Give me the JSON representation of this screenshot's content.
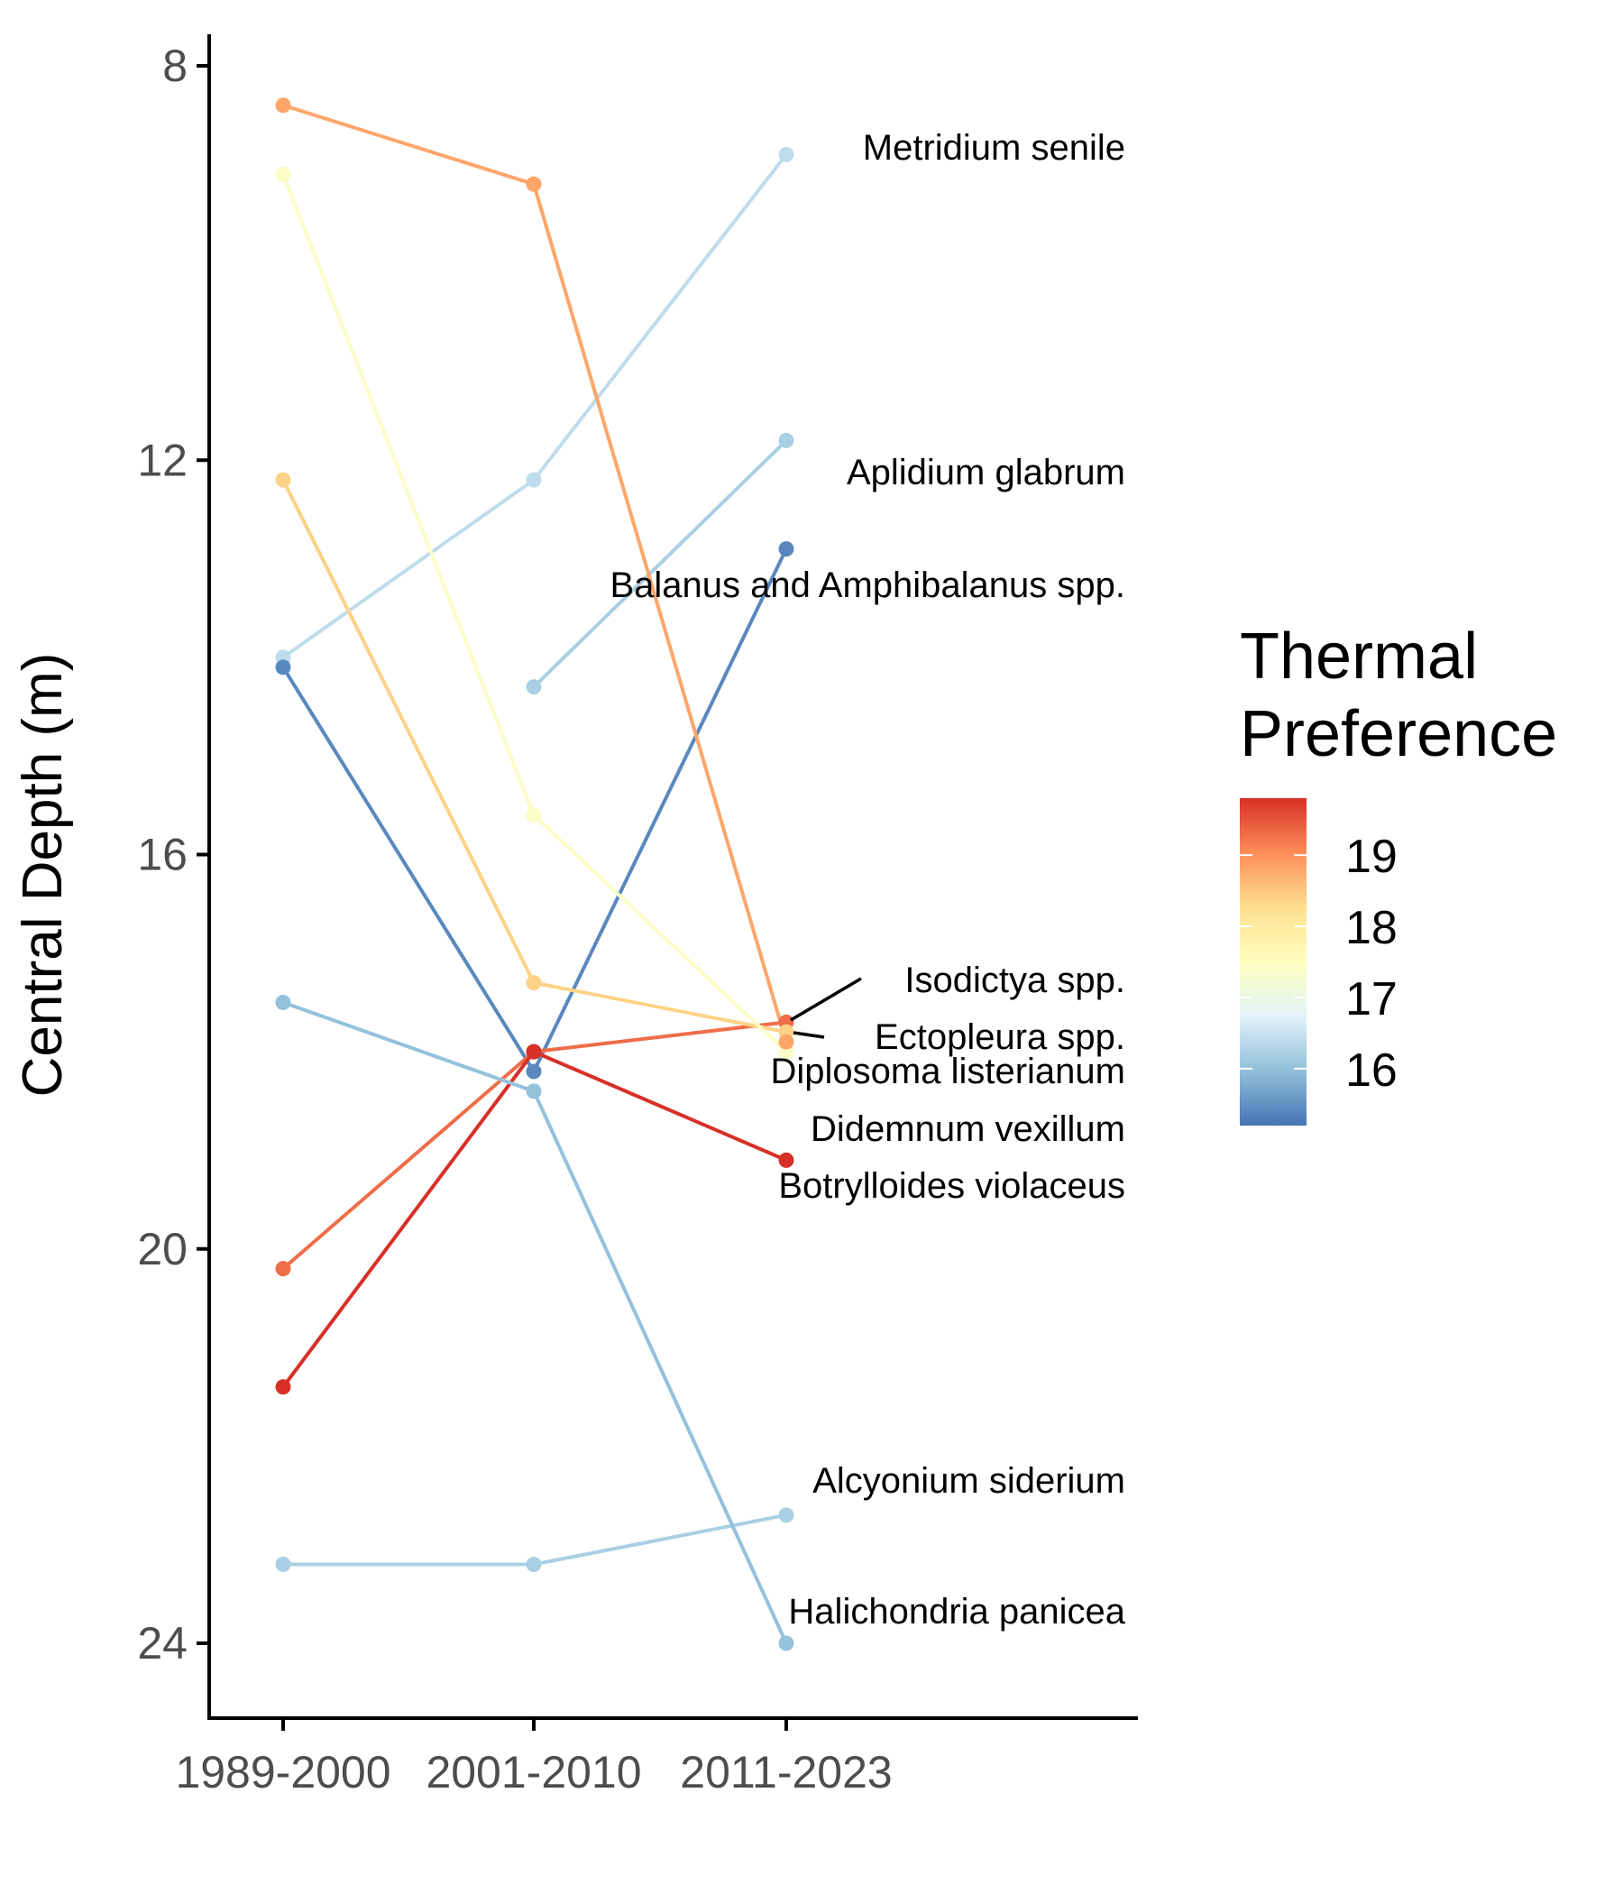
{
  "chart_data": {
    "type": "line",
    "ylabel": "Central Depth (m)",
    "xlabel": "",
    "categories": [
      "1989-2000",
      "2001-2010",
      "2011-2023"
    ],
    "y_axis": {
      "ticks": [
        8,
        12,
        16,
        20,
        24
      ],
      "range": [
        7.7,
        24.8
      ],
      "reversed": true
    },
    "grid": false,
    "legend": {
      "title_lines": [
        "Thermal",
        "Preference"
      ],
      "ticks": [
        16,
        17,
        18,
        19
      ],
      "range": [
        15.2,
        19.8
      ],
      "position": "right",
      "colors": [
        "#4575b4",
        "#91bfdb",
        "#e0f3f8",
        "#ffffbf",
        "#fee090",
        "#fc8d59",
        "#d73027"
      ]
    },
    "series": [
      {
        "name": "Metridium senile",
        "thermal": 16.4,
        "values": [
          14.0,
          12.2,
          8.9
        ]
      },
      {
        "name": "Aplidium glabrum",
        "thermal": 16.2,
        "values": [
          null,
          14.3,
          11.8
        ]
      },
      {
        "name": "Balanus and Amphibalanus spp.",
        "thermal": 15.4,
        "values": [
          14.1,
          18.2,
          12.9
        ]
      },
      {
        "name": "Isodictya spp.",
        "thermal": 19.3,
        "values": [
          20.2,
          18.0,
          17.7
        ]
      },
      {
        "name": "Ectopleura spp.",
        "thermal": 18.4,
        "values": [
          12.2,
          17.3,
          17.8
        ]
      },
      {
        "name": "Diplosoma listerianum",
        "thermal": 17.4,
        "values": [
          9.1,
          15.6,
          18.0
        ]
      },
      {
        "name": "Didemnum vexillum",
        "thermal": 19.8,
        "values": [
          21.4,
          18.0,
          19.1
        ]
      },
      {
        "name": "Botrylloides violaceus",
        "thermal": 18.8,
        "values": [
          8.4,
          9.2,
          17.9
        ]
      },
      {
        "name": "Alcyonium siderium",
        "thermal": 16.2,
        "values": [
          23.2,
          23.2,
          22.7
        ]
      },
      {
        "name": "Halichondria panicea",
        "thermal": 16.0,
        "values": [
          17.5,
          18.4,
          24.0
        ]
      }
    ]
  }
}
